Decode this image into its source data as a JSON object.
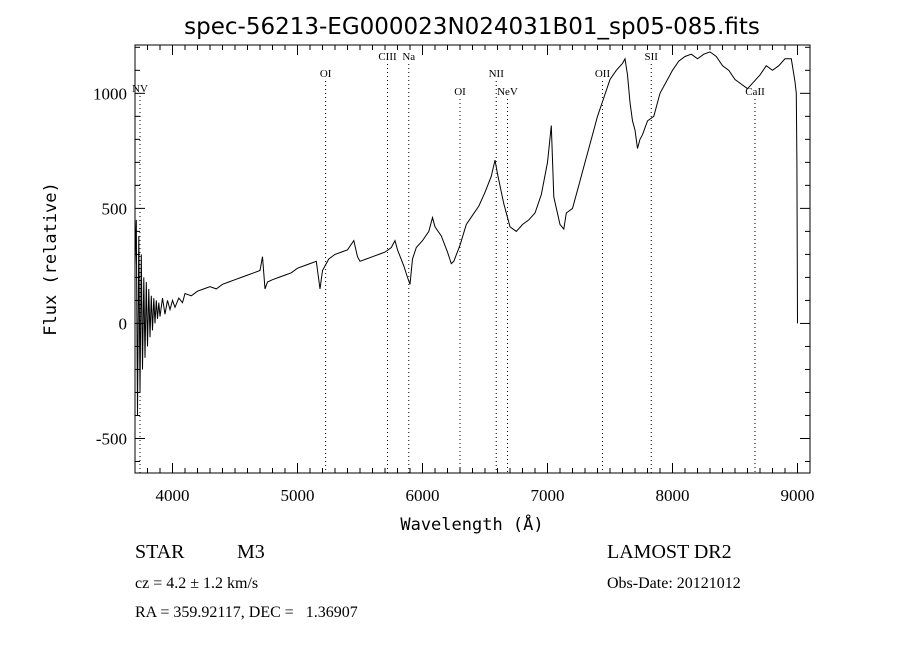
{
  "chart_data": {
    "type": "line",
    "title": "spec-56213-EG000023N024031B01_sp05-085.fits",
    "xlabel": "Wavelength (Å)",
    "ylabel": "Flux (relative)",
    "xlim": [
      3700,
      9100
    ],
    "ylim": [
      -650,
      1210
    ],
    "x_ticks": [
      4000,
      5000,
      6000,
      7000,
      8000,
      9000
    ],
    "y_ticks": [
      -500,
      0,
      500,
      1000
    ],
    "grid": false,
    "series": [
      {
        "values": [
          [
            3700,
            250
          ],
          [
            3710,
            450
          ],
          [
            3720,
            -400
          ],
          [
            3730,
            380
          ],
          [
            3740,
            -300
          ],
          [
            3750,
            300
          ],
          [
            3760,
            -200
          ],
          [
            3770,
            200
          ],
          [
            3780,
            -150
          ],
          [
            3790,
            180
          ],
          [
            3800,
            -100
          ],
          [
            3810,
            150
          ],
          [
            3820,
            -60
          ],
          [
            3830,
            120
          ],
          [
            3840,
            -30
          ],
          [
            3850,
            110
          ],
          [
            3860,
            0
          ],
          [
            3870,
            100
          ],
          [
            3880,
            20
          ],
          [
            3890,
            90
          ],
          [
            3900,
            30
          ],
          [
            3920,
            110
          ],
          [
            3940,
            40
          ],
          [
            3960,
            100
          ],
          [
            3980,
            60
          ],
          [
            4000,
            100
          ],
          [
            4020,
            70
          ],
          [
            4050,
            110
          ],
          [
            4080,
            90
          ],
          [
            4100,
            130
          ],
          [
            4150,
            120
          ],
          [
            4200,
            140
          ],
          [
            4250,
            150
          ],
          [
            4300,
            160
          ],
          [
            4350,
            150
          ],
          [
            4400,
            170
          ],
          [
            4450,
            180
          ],
          [
            4500,
            190
          ],
          [
            4550,
            200
          ],
          [
            4600,
            210
          ],
          [
            4650,
            220
          ],
          [
            4700,
            230
          ],
          [
            4720,
            290
          ],
          [
            4740,
            150
          ],
          [
            4760,
            180
          ],
          [
            4800,
            190
          ],
          [
            4850,
            200
          ],
          [
            4900,
            210
          ],
          [
            4950,
            220
          ],
          [
            5000,
            240
          ],
          [
            5050,
            250
          ],
          [
            5100,
            260
          ],
          [
            5150,
            270
          ],
          [
            5180,
            150
          ],
          [
            5200,
            230
          ],
          [
            5250,
            280
          ],
          [
            5300,
            300
          ],
          [
            5350,
            310
          ],
          [
            5400,
            320
          ],
          [
            5450,
            360
          ],
          [
            5480,
            290
          ],
          [
            5500,
            270
          ],
          [
            5550,
            280
          ],
          [
            5600,
            290
          ],
          [
            5650,
            300
          ],
          [
            5700,
            310
          ],
          [
            5750,
            330
          ],
          [
            5780,
            360
          ],
          [
            5800,
            320
          ],
          [
            5850,
            250
          ],
          [
            5880,
            200
          ],
          [
            5900,
            170
          ],
          [
            5920,
            280
          ],
          [
            5950,
            330
          ],
          [
            6000,
            360
          ],
          [
            6050,
            400
          ],
          [
            6080,
            460
          ],
          [
            6100,
            420
          ],
          [
            6150,
            380
          ],
          [
            6200,
            310
          ],
          [
            6230,
            260
          ],
          [
            6250,
            270
          ],
          [
            6300,
            340
          ],
          [
            6350,
            430
          ],
          [
            6400,
            470
          ],
          [
            6450,
            510
          ],
          [
            6500,
            570
          ],
          [
            6550,
            640
          ],
          [
            6580,
            710
          ],
          [
            6600,
            650
          ],
          [
            6650,
            520
          ],
          [
            6700,
            420
          ],
          [
            6750,
            400
          ],
          [
            6800,
            430
          ],
          [
            6850,
            450
          ],
          [
            6900,
            480
          ],
          [
            6950,
            560
          ],
          [
            7000,
            700
          ],
          [
            7030,
            860
          ],
          [
            7050,
            550
          ],
          [
            7100,
            430
          ],
          [
            7130,
            410
          ],
          [
            7150,
            480
          ],
          [
            7200,
            500
          ],
          [
            7250,
            600
          ],
          [
            7300,
            700
          ],
          [
            7350,
            800
          ],
          [
            7400,
            900
          ],
          [
            7450,
            980
          ],
          [
            7500,
            1060
          ],
          [
            7550,
            1100
          ],
          [
            7600,
            1130
          ],
          [
            7620,
            1150
          ],
          [
            7640,
            1080
          ],
          [
            7660,
            960
          ],
          [
            7680,
            880
          ],
          [
            7700,
            840
          ],
          [
            7720,
            760
          ],
          [
            7740,
            800
          ],
          [
            7760,
            820
          ],
          [
            7800,
            880
          ],
          [
            7850,
            900
          ],
          [
            7900,
            1000
          ],
          [
            7950,
            1050
          ],
          [
            8000,
            1100
          ],
          [
            8050,
            1140
          ],
          [
            8100,
            1160
          ],
          [
            8150,
            1170
          ],
          [
            8200,
            1150
          ],
          [
            8250,
            1170
          ],
          [
            8300,
            1180
          ],
          [
            8350,
            1160
          ],
          [
            8400,
            1120
          ],
          [
            8450,
            1100
          ],
          [
            8500,
            1060
          ],
          [
            8550,
            1040
          ],
          [
            8600,
            1020
          ],
          [
            8650,
            1050
          ],
          [
            8700,
            1080
          ],
          [
            8750,
            1120
          ],
          [
            8800,
            1100
          ],
          [
            8850,
            1120
          ],
          [
            8900,
            1150
          ],
          [
            8950,
            1150
          ],
          [
            8980,
            1050
          ],
          [
            8990,
            1000
          ],
          [
            8995,
            700
          ],
          [
            9000,
            0
          ]
        ]
      }
    ],
    "lines": [
      {
        "name": "NV",
        "x": 3740
      },
      {
        "name": "OI",
        "x": 5225
      },
      {
        "name": "CIII",
        "x": 5720
      },
      {
        "name": "Na",
        "x": 5890
      },
      {
        "name": "OI",
        "x": 6300
      },
      {
        "name": "NII",
        "x": 6590
      },
      {
        "name": "NeV",
        "x": 6680
      },
      {
        "name": "OII",
        "x": 7440
      },
      {
        "name": "SII",
        "x": 7830
      },
      {
        "name": "CaII",
        "x": 8660
      }
    ]
  },
  "footer": {
    "object_class": "STAR",
    "subclass": "M3",
    "survey": "LAMOST DR2",
    "cz": "cz = 4.2 ± 1.2 km/s",
    "obs_date": "Obs-Date: 20121012",
    "radec": "RA = 359.92117, DEC =   1.36907"
  }
}
